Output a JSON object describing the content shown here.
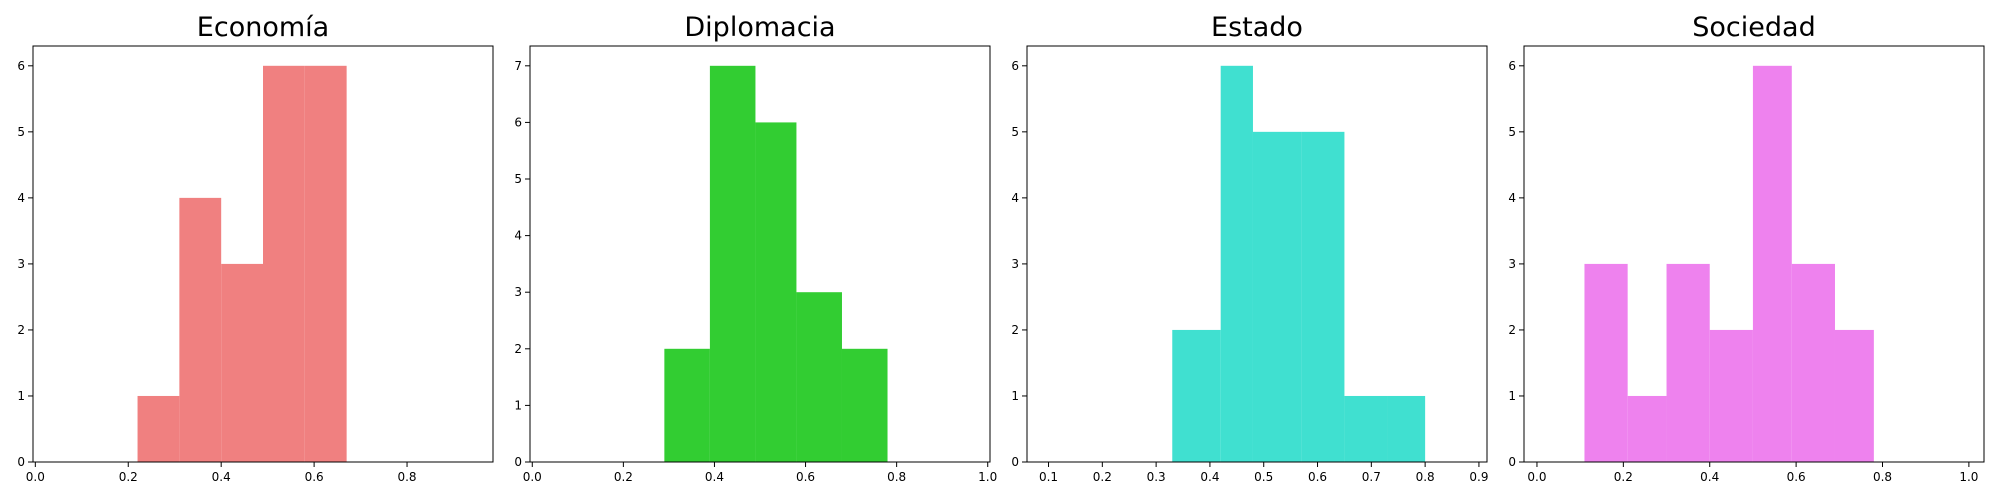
{
  "chart_data": [
    {
      "type": "bar",
      "title": "Economía",
      "color": "#F08080",
      "xlim": [
        -0.005,
        0.985
      ],
      "ylim": [
        0,
        6.3
      ],
      "xticks": [
        "0.0",
        "0.2",
        "0.4",
        "0.6",
        "0.8"
      ],
      "yticks": [
        "0",
        "1",
        "2",
        "3",
        "4",
        "5",
        "6"
      ],
      "bins": [
        {
          "x0": 0.22,
          "x1": 0.31,
          "value": 1
        },
        {
          "x0": 0.31,
          "x1": 0.4,
          "value": 4
        },
        {
          "x0": 0.4,
          "x1": 0.49,
          "value": 3
        },
        {
          "x0": 0.49,
          "x1": 0.58,
          "value": 6
        },
        {
          "x0": 0.58,
          "x1": 0.67,
          "value": 6
        }
      ]
    },
    {
      "type": "bar",
      "title": "Diplomacia",
      "color": "#32CD32",
      "xlim": [
        -0.005,
        1.005
      ],
      "ylim": [
        0,
        7.35
      ],
      "xticks": [
        "0.0",
        "0.2",
        "0.4",
        "0.6",
        "0.8",
        "1.0"
      ],
      "yticks": [
        "0",
        "1",
        "2",
        "3",
        "4",
        "5",
        "6",
        "7"
      ],
      "bins": [
        {
          "x0": 0.29,
          "x1": 0.39,
          "value": 2
        },
        {
          "x0": 0.39,
          "x1": 0.49,
          "value": 7
        },
        {
          "x0": 0.49,
          "x1": 0.58,
          "value": 6
        },
        {
          "x0": 0.58,
          "x1": 0.68,
          "value": 3
        },
        {
          "x0": 0.68,
          "x1": 0.78,
          "value": 2
        }
      ]
    },
    {
      "type": "bar",
      "title": "Estado",
      "color": "#40E0D0",
      "xlim": [
        0.06,
        0.915
      ],
      "ylim": [
        0,
        6.3
      ],
      "xticks": [
        "0.1",
        "0.2",
        "0.3",
        "0.4",
        "0.5",
        "0.6",
        "0.7",
        "0.8",
        "0.9"
      ],
      "yticks": [
        "0",
        "1",
        "2",
        "3",
        "4",
        "5",
        "6"
      ],
      "bins": [
        {
          "x0": 0.33,
          "x1": 0.42,
          "value": 2
        },
        {
          "x0": 0.42,
          "x1": 0.48,
          "value": 6
        },
        {
          "x0": 0.48,
          "x1": 0.57,
          "value": 5
        },
        {
          "x0": 0.57,
          "x1": 0.65,
          "value": 5
        },
        {
          "x0": 0.65,
          "x1": 0.73,
          "value": 1
        },
        {
          "x0": 0.73,
          "x1": 0.8,
          "value": 1
        }
      ]
    },
    {
      "type": "bar",
      "title": "Sociedad",
      "color": "#EE82EE",
      "xlim": [
        -0.03,
        1.035
      ],
      "ylim": [
        0,
        6.3
      ],
      "xticks": [
        "0.0",
        "0.2",
        "0.4",
        "0.6",
        "0.8",
        "1.0"
      ],
      "yticks": [
        "0",
        "1",
        "2",
        "3",
        "4",
        "5",
        "6"
      ],
      "bins": [
        {
          "x0": 0.11,
          "x1": 0.21,
          "value": 3
        },
        {
          "x0": 0.21,
          "x1": 0.3,
          "value": 1
        },
        {
          "x0": 0.3,
          "x1": 0.4,
          "value": 3
        },
        {
          "x0": 0.4,
          "x1": 0.5,
          "value": 2
        },
        {
          "x0": 0.5,
          "x1": 0.59,
          "value": 6
        },
        {
          "x0": 0.59,
          "x1": 0.69,
          "value": 3
        },
        {
          "x0": 0.69,
          "x1": 0.78,
          "value": 2
        }
      ]
    }
  ]
}
